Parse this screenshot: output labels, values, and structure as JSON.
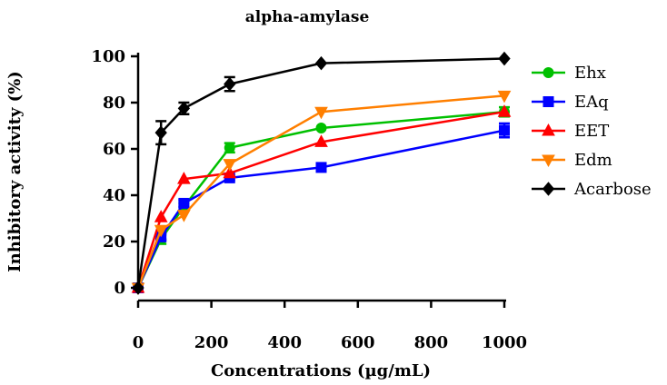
{
  "chart_data": {
    "type": "line",
    "title": "alpha-amylase",
    "xlabel": "Concentrations (µg/mL)",
    "ylabel": "Inhibitory activity (%)",
    "xlim": [
      0,
      1000
    ],
    "ylim": [
      0,
      100
    ],
    "xticks": [
      "0",
      "200",
      "400",
      "600",
      "800",
      "1000"
    ],
    "yticks": [
      "0",
      "20",
      "40",
      "60",
      "80",
      "100"
    ],
    "grid": false,
    "legend_position": "right",
    "series": [
      {
        "name": "Ehx",
        "color": "#00c000",
        "marker": "circle",
        "x": [
          0,
          62.5,
          125,
          250,
          500,
          1000
        ],
        "y": [
          0,
          21,
          35,
          60.5,
          69,
          76
        ],
        "err": [
          0,
          2,
          1.5,
          2,
          0,
          2
        ]
      },
      {
        "name": "EAq",
        "color": "#0000ff",
        "marker": "square",
        "x": [
          0,
          62.5,
          125,
          250,
          500,
          1000
        ],
        "y": [
          0,
          22,
          36.5,
          47.5,
          52,
          68
        ],
        "err": [
          0,
          1.5,
          1.5,
          1,
          0,
          3
        ]
      },
      {
        "name": "EET",
        "color": "#ff0000",
        "marker": "triangle-up",
        "x": [
          0,
          62.5,
          125,
          250,
          500,
          1000
        ],
        "y": [
          0,
          30.5,
          47,
          49.5,
          63,
          76
        ],
        "err": [
          0,
          0,
          0,
          0,
          0,
          0
        ]
      },
      {
        "name": "Edm",
        "color": "#ff7f00",
        "marker": "triangle-down",
        "x": [
          0,
          62.5,
          125,
          250,
          500,
          1000
        ],
        "y": [
          0,
          25,
          31.5,
          53.5,
          76,
          83
        ],
        "err": [
          0,
          0,
          0,
          0,
          0,
          0
        ]
      },
      {
        "name": "Acarbose",
        "color": "#000000",
        "marker": "diamond",
        "x": [
          0,
          62.5,
          125,
          250,
          500,
          1000
        ],
        "y": [
          0,
          67,
          77.5,
          88,
          97,
          99
        ],
        "err": [
          0,
          5,
          2.5,
          3,
          0,
          0
        ]
      }
    ]
  }
}
